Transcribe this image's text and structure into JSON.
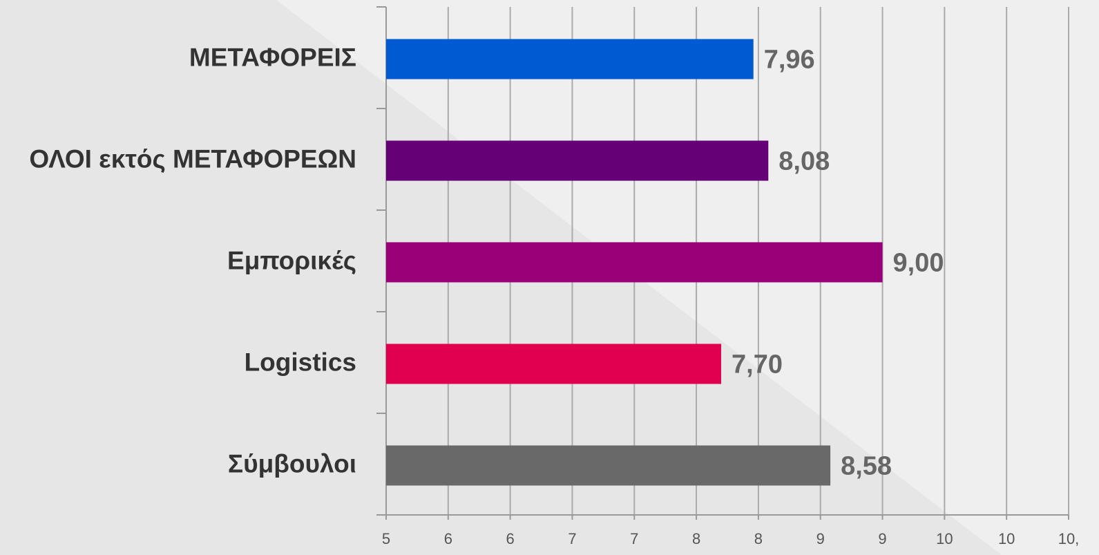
{
  "chart_data": {
    "type": "bar",
    "orientation": "horizontal",
    "categories": [
      "ΜΕΤΑΦΟΡΕΙΣ",
      "ΟΛΟΙ εκτός ΜΕΤΑΦΟΡΕΩΝ",
      "Εμπορικές",
      "Logistics",
      "Σύμβουλοι"
    ],
    "values": [
      7.96,
      8.08,
      9.0,
      7.7,
      8.58
    ],
    "value_labels": [
      "7,96",
      "8,08",
      "9,00",
      "7,70",
      "8,58"
    ],
    "colors": [
      "#005bd3",
      "#660077",
      "#990077",
      "#e0004f",
      "#696969"
    ],
    "xlim": [
      5,
      10.5
    ],
    "xticks": [
      {
        "value": 5,
        "label": "5"
      },
      {
        "value": 5.5,
        "label": "6"
      },
      {
        "value": 6,
        "label": "6"
      },
      {
        "value": 6.5,
        "label": "7"
      },
      {
        "value": 7,
        "label": "7"
      },
      {
        "value": 7.5,
        "label": "8"
      },
      {
        "value": 8,
        "label": "8"
      },
      {
        "value": 8.5,
        "label": "9"
      },
      {
        "value": 9,
        "label": "9"
      },
      {
        "value": 9.5,
        "label": "10"
      },
      {
        "value": 10,
        "label": "10"
      },
      {
        "value": 10.5,
        "label": "10,"
      }
    ],
    "grid": true
  }
}
